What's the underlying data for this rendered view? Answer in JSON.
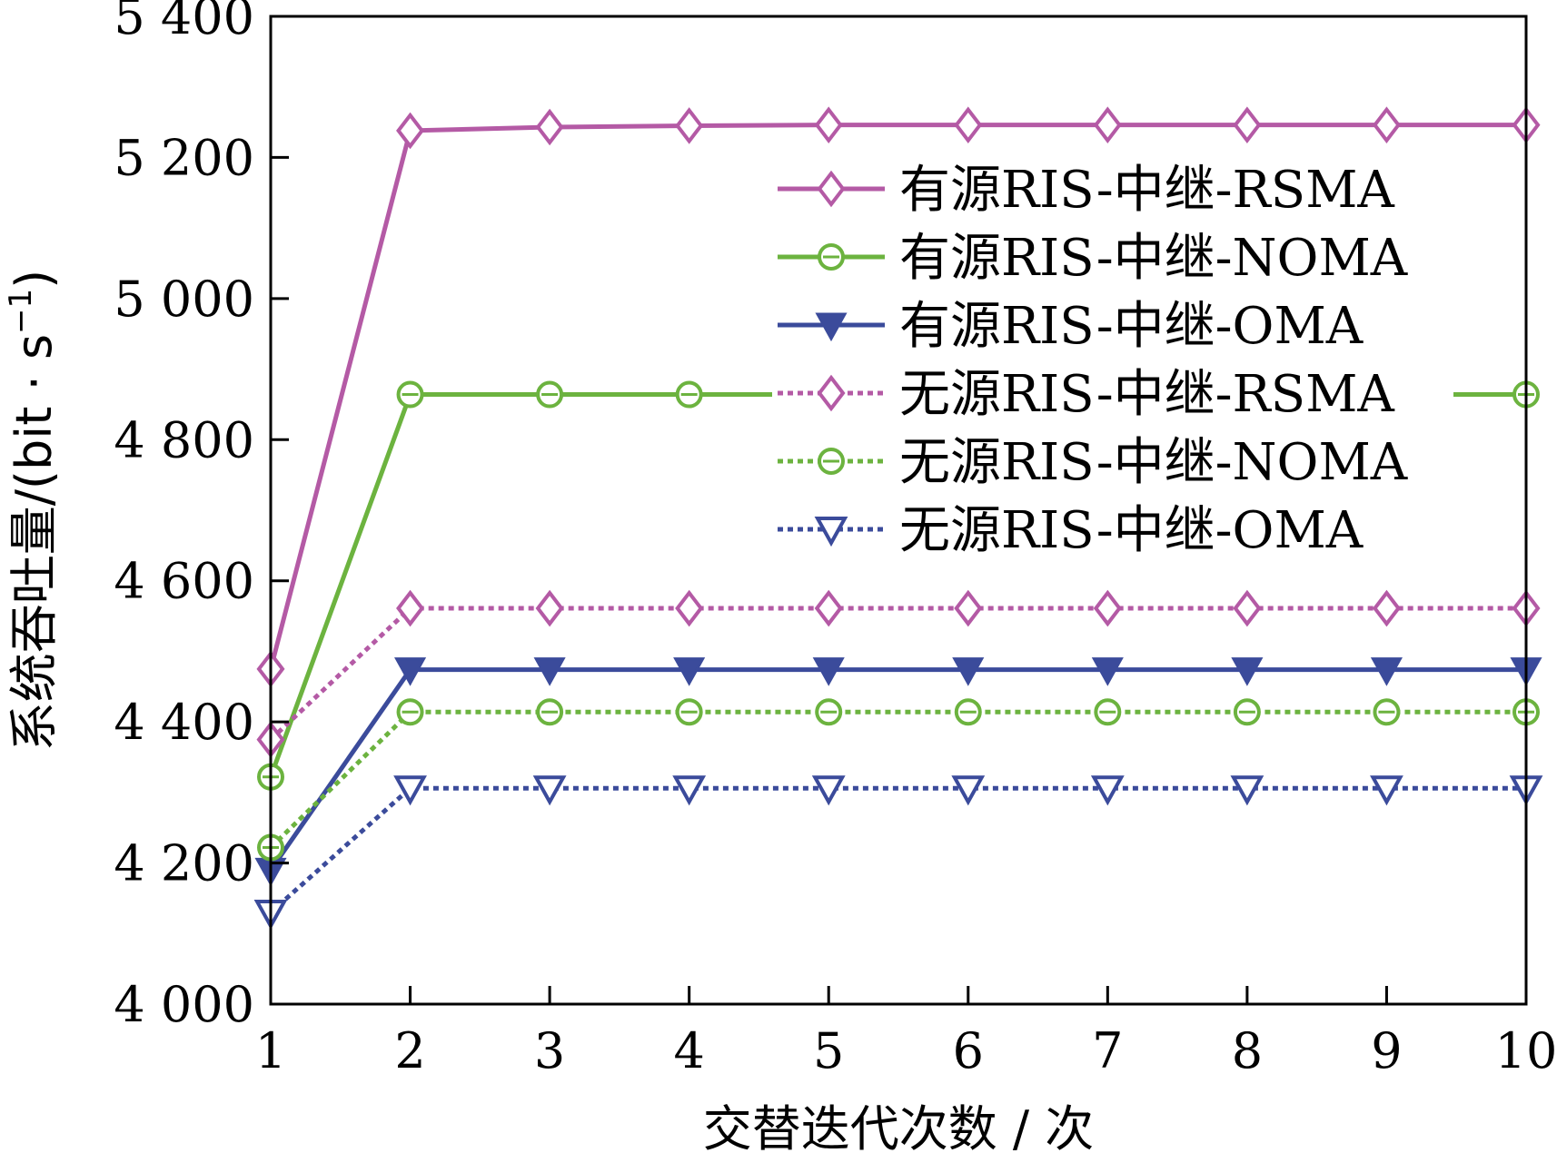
{
  "chart_data": {
    "type": "line",
    "x": [
      1,
      2,
      3,
      4,
      5,
      6,
      7,
      8,
      9,
      10
    ],
    "xlabel": "交替迭代次数 / 次",
    "ylabel": "系统吞吐量/(bit · s",
    "ylabel_sup": "−1",
    "ylabel_close": ")",
    "xlim": [
      1,
      10
    ],
    "ylim": [
      4000,
      5400
    ],
    "xticks": [
      1,
      2,
      3,
      4,
      5,
      6,
      7,
      8,
      9,
      10
    ],
    "xtick_labels": [
      "1",
      "2",
      "3",
      "4",
      "5",
      "6",
      "7",
      "8",
      "9",
      "10"
    ],
    "yticks": [
      4000,
      4200,
      4400,
      4600,
      4800,
      5000,
      5200,
      5400
    ],
    "ytick_labels": [
      "4 000",
      "4 200",
      "4 400",
      "4 600",
      "4 800",
      "5 000",
      "5 200",
      "5 400"
    ],
    "grid": false,
    "legend_position": "top-right",
    "series": [
      {
        "name": "有源RIS-中继-RSMA",
        "color": "#b45aa5",
        "dash": "solid",
        "marker": "diamond",
        "values": [
          4475,
          5238,
          5243,
          5245,
          5246,
          5246,
          5246,
          5246,
          5246,
          5246
        ]
      },
      {
        "name": "有源RIS-中继-NOMA",
        "color": "#6cb33f",
        "dash": "solid",
        "marker": "circle",
        "values": [
          4322,
          4864,
          4864,
          4864,
          4864,
          4864,
          4864,
          4864,
          4864,
          4864
        ]
      },
      {
        "name": "有源RIS-中继-OMA",
        "color": "#3b4b9b",
        "dash": "solid",
        "marker": "triangle-down",
        "values": [
          4190,
          4474,
          4474,
          4474,
          4474,
          4474,
          4474,
          4474,
          4474,
          4474
        ]
      },
      {
        "name": "无源RIS-中继-RSMA",
        "color": "#b45aa5",
        "dash": "dotted",
        "marker": "diamond",
        "values": [
          4375,
          4561,
          4561,
          4561,
          4561,
          4561,
          4561,
          4561,
          4561,
          4561
        ]
      },
      {
        "name": "无源RIS-中继-NOMA",
        "color": "#6cb33f",
        "dash": "dotted",
        "marker": "circle",
        "values": [
          4222,
          4414,
          4414,
          4414,
          4414,
          4414,
          4414,
          4414,
          4414,
          4414
        ]
      },
      {
        "name": "无源RIS-中继-OMA",
        "color": "#3b4b9b",
        "dash": "dotted",
        "marker": "triangle-down-open",
        "values": [
          4130,
          4306,
          4306,
          4306,
          4306,
          4306,
          4306,
          4306,
          4306,
          4306
        ]
      }
    ]
  }
}
